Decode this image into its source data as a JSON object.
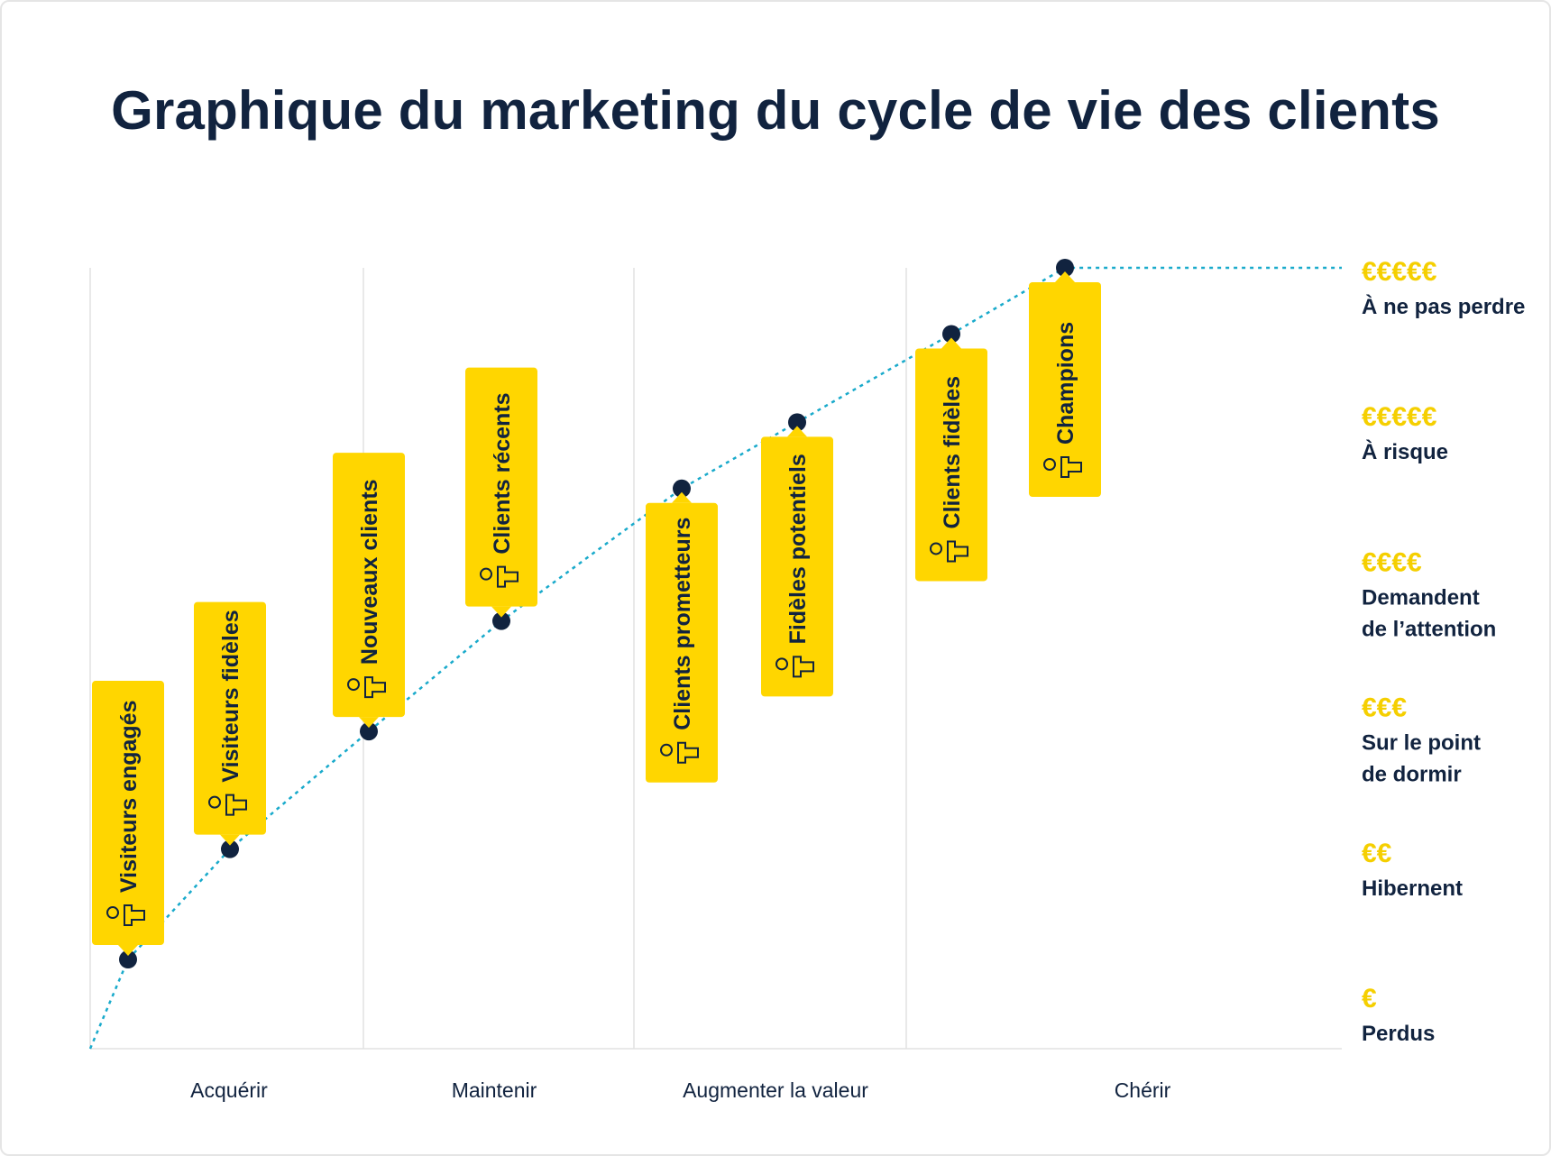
{
  "title": "Graphique du marketing du cycle de vie des clients",
  "colors": {
    "navy": "#11233f",
    "yellow": "#ffd600",
    "euro": "#f5cf00",
    "line": "#19aacb",
    "grid": "#e2e2e2"
  },
  "icon": "person-pair-icon",
  "chart_data": {
    "type": "line",
    "title": "Graphique du marketing du cycle de vie des clients",
    "stages": [
      "Acquérir",
      "Maintenir",
      "Augmenter la valeur",
      "Chérir"
    ],
    "levels": [
      {
        "euros": "€",
        "label": [
          "Perdus"
        ]
      },
      {
        "euros": "€€",
        "label": [
          "Hibernent"
        ]
      },
      {
        "euros": "€€€",
        "label": [
          "Sur le point",
          "de dormir"
        ]
      },
      {
        "euros": "€€€€",
        "label": [
          "Demandent",
          "de l’attention"
        ]
      },
      {
        "euros": "€€€€€",
        "label": [
          "À risque"
        ]
      },
      {
        "euros": "€€€€€",
        "label": [
          "À ne pas perdre"
        ]
      }
    ],
    "ylim": [
      0,
      5
    ],
    "series": [
      {
        "points": [
          {
            "label": "Visiteurs engagés",
            "stage": 0,
            "y": 0.3
          },
          {
            "label": "Visiteurs fidèles",
            "stage": 0,
            "y": 1.05
          },
          {
            "label": "Nouveaux clients",
            "stage": 1,
            "y": 1.85
          },
          {
            "label": "Clients récents",
            "stage": 1,
            "y": 2.6
          },
          {
            "label": "Clients prometteurs",
            "stage": 2,
            "y": 3.5
          },
          {
            "label": "Fidèles potentiels",
            "stage": 2,
            "y": 3.95
          },
          {
            "label": "Clients fidèles",
            "stage": 3,
            "y": 4.55
          },
          {
            "label": "Champions",
            "stage": 3,
            "y": 5.0
          }
        ]
      }
    ],
    "grid": true,
    "legend": "none"
  }
}
